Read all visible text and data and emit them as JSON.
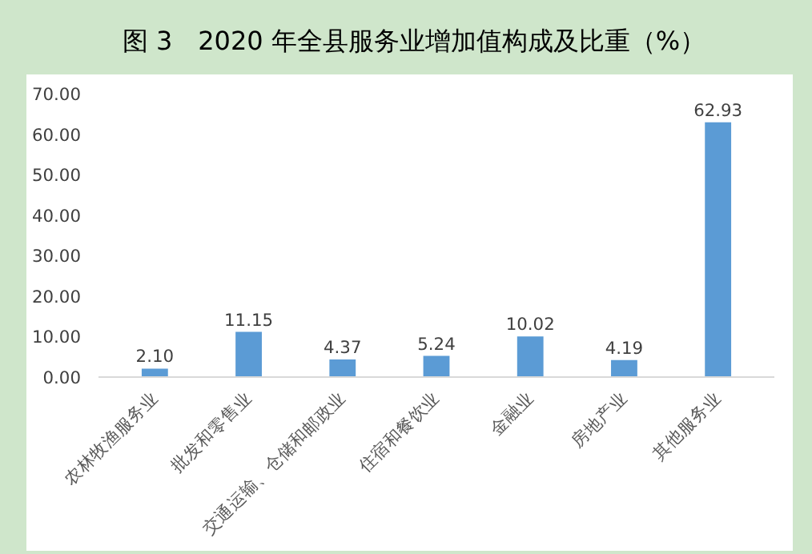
{
  "chart_data": {
    "type": "bar",
    "title": "图 3　2020 年全县服务业增加值构成及比重（%）",
    "categories": [
      "农林牧渔服务业",
      "批发和零售业",
      "交通运输、仓储和邮政业",
      "住宿和餐饮业",
      "金融业",
      "房地产业",
      "其他服务业"
    ],
    "values": [
      2.1,
      11.15,
      4.37,
      5.24,
      10.02,
      4.19,
      62.93
    ],
    "value_labels": [
      "2.10",
      "11.15",
      "4.37",
      "5.24",
      "10.02",
      "4.19",
      "62.93"
    ],
    "color": "#5b9bd5",
    "ylim": [
      0,
      70
    ],
    "yticks": [
      {
        "value": 0,
        "label": "0.00"
      },
      {
        "value": 10,
        "label": "10.00"
      },
      {
        "value": 20,
        "label": "20.00"
      },
      {
        "value": 30,
        "label": "30.00"
      },
      {
        "value": 40,
        "label": "40.00"
      },
      {
        "value": 50,
        "label": "50.00"
      },
      {
        "value": 60,
        "label": "60.00"
      },
      {
        "value": 70,
        "label": "70.00"
      }
    ],
    "grid": false
  }
}
